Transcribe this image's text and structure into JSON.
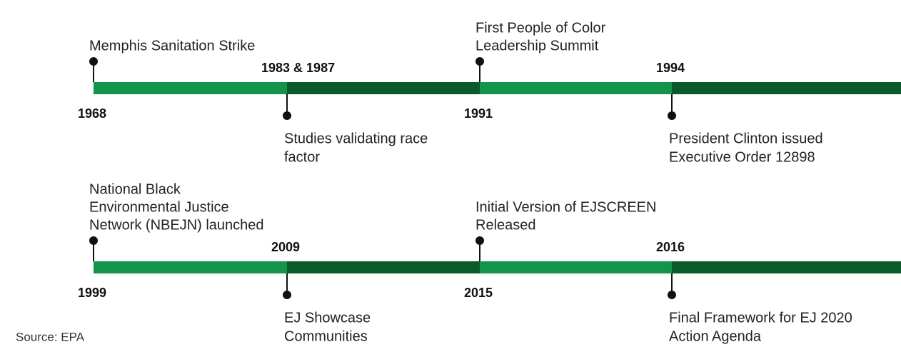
{
  "rows": [
    {
      "events": [
        {
          "year": "1968",
          "label": [
            "Memphis Sanitation Strike"
          ]
        },
        {
          "year": "1983 & 1987",
          "label": [
            "Studies validating race",
            "factor"
          ]
        },
        {
          "year": "1991",
          "label": [
            "First People of Color",
            "Leadership Summit"
          ]
        },
        {
          "year": "1994",
          "label": [
            "President Clinton issued",
            "Executive Order 12898"
          ]
        }
      ]
    },
    {
      "events": [
        {
          "year": "1999",
          "label": [
            "National Black",
            "Environmental Justice",
            "Network (NBEJN) launched"
          ]
        },
        {
          "year": "2009",
          "label": [
            "EJ Showcase",
            "Communities"
          ]
        },
        {
          "year": "2015",
          "label": [
            "Initial Version of EJSCREEN",
            "Released"
          ]
        },
        {
          "year": "2016",
          "label": [
            "Final Framework for EJ 2020",
            "Action Agenda"
          ]
        }
      ]
    }
  ],
  "source": "Source: EPA"
}
